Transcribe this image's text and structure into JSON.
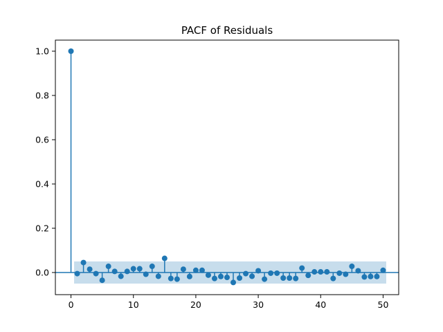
{
  "chart_data": {
    "type": "stem",
    "title": "PACF of Residuals",
    "xlabel": "",
    "ylabel": "",
    "xlim": [
      -2.5,
      52.5
    ],
    "ylim": [
      -0.1,
      1.05
    ],
    "xticks": [
      0,
      10,
      20,
      30,
      40,
      50
    ],
    "yticks": [
      0.0,
      0.2,
      0.4,
      0.6,
      0.8,
      1.0
    ],
    "grid": false,
    "confidence_band": {
      "lower": -0.05,
      "upper": 0.05,
      "x_start": 0.5,
      "x_end": 50.5
    },
    "lags": [
      0,
      1,
      2,
      3,
      4,
      5,
      6,
      7,
      8,
      9,
      10,
      11,
      12,
      13,
      14,
      15,
      16,
      17,
      18,
      19,
      20,
      21,
      22,
      23,
      24,
      25,
      26,
      27,
      28,
      29,
      30,
      31,
      32,
      33,
      34,
      35,
      36,
      37,
      38,
      39,
      40,
      41,
      42,
      43,
      44,
      45,
      46,
      47,
      48,
      49,
      50
    ],
    "values": [
      1.0,
      -0.005,
      0.045,
      0.015,
      -0.005,
      -0.035,
      0.028,
      0.005,
      -0.017,
      0.005,
      0.017,
      0.017,
      -0.008,
      0.028,
      -0.017,
      0.064,
      -0.027,
      -0.03,
      0.015,
      -0.018,
      0.01,
      0.01,
      -0.012,
      -0.027,
      -0.018,
      -0.022,
      -0.045,
      -0.025,
      -0.005,
      -0.017,
      0.008,
      -0.03,
      -0.003,
      -0.003,
      -0.025,
      -0.025,
      -0.027,
      0.02,
      -0.013,
      0.003,
      0.003,
      0.003,
      -0.027,
      -0.003,
      -0.008,
      0.028,
      0.008,
      -0.02,
      -0.018,
      -0.018,
      0.01
    ],
    "colors": {
      "series": "#1f77b4",
      "band": "#1f77b4"
    }
  }
}
